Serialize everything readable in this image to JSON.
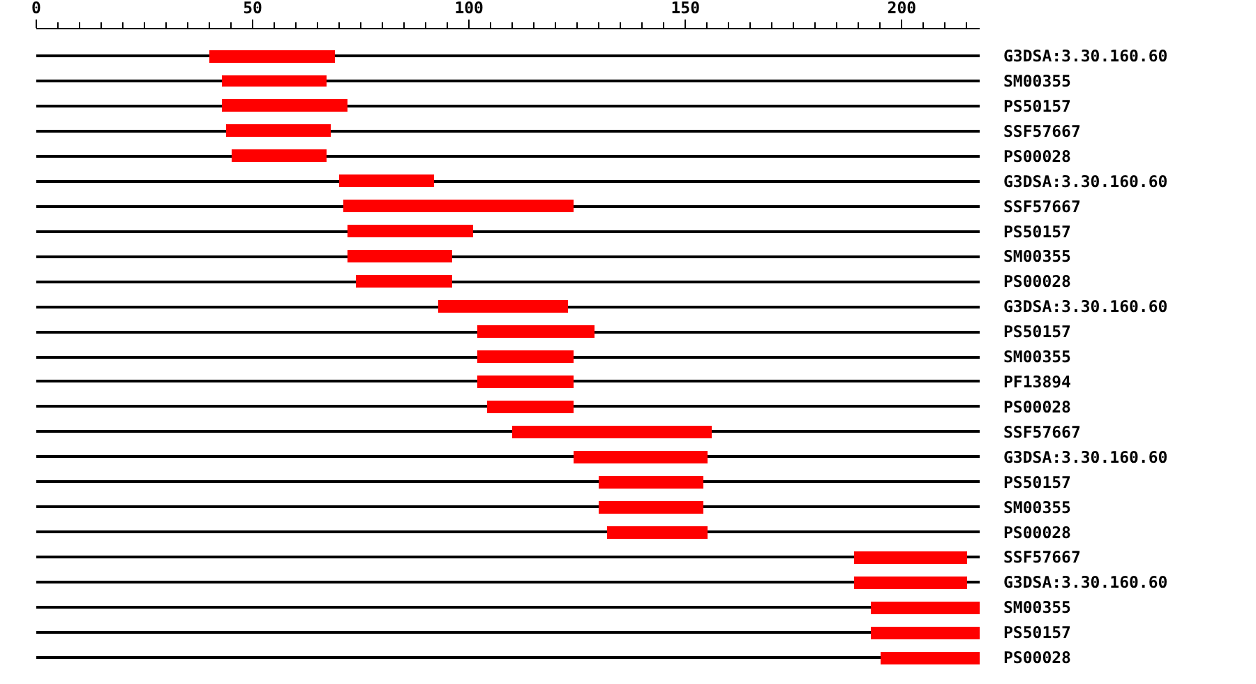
{
  "chart_data": {
    "type": "bar",
    "orientation": "horizontal",
    "categories": [
      "G3DSA:3.30.160.60",
      "SM00355",
      "PS50157",
      "SSF57667",
      "PS00028",
      "G3DSA:3.30.160.60",
      "SSF57667",
      "PS50157",
      "SM00355",
      "PS00028",
      "G3DSA:3.30.160.60",
      "PS50157",
      "SM00355",
      "PF13894",
      "PS00028",
      "SSF57667",
      "G3DSA:3.30.160.60",
      "PS50157",
      "SM00355",
      "PS00028",
      "SSF57667",
      "G3DSA:3.30.160.60",
      "SM00355",
      "PS50157",
      "PS00028"
    ],
    "series": [
      {
        "color": "#000000",
        "base": [
          0,
          0,
          0,
          0,
          0,
          0,
          0,
          0,
          0,
          0,
          0,
          0,
          0,
          0,
          0,
          0,
          0,
          0,
          0,
          0,
          0,
          0,
          0,
          0,
          0
        ],
        "values": [
          218,
          218,
          218,
          218,
          218,
          218,
          218,
          218,
          218,
          218,
          218,
          218,
          218,
          218,
          218,
          218,
          218,
          218,
          218,
          218,
          218,
          218,
          193,
          193,
          195
        ]
      },
      {
        "color": "#ff0000",
        "base": [
          40,
          43,
          43,
          44,
          45,
          70,
          71,
          72,
          72,
          74,
          93,
          102,
          102,
          102,
          104,
          110,
          124,
          130,
          130,
          132,
          189,
          189,
          193,
          193,
          195
        ],
        "values": [
          29,
          24,
          29,
          24,
          22,
          22,
          53,
          29,
          24,
          22,
          30,
          27,
          22,
          22,
          20,
          46,
          31,
          24,
          24,
          23,
          26,
          26,
          25,
          25,
          23
        ]
      }
    ],
    "xlim": [
      0,
      218
    ],
    "xticks": [
      0,
      {
        "value": 5,
        "label": null
      },
      {
        "value": 10,
        "label": null
      },
      {
        "value": 15,
        "label": null
      },
      {
        "value": 20,
        "label": null
      },
      {
        "value": 25,
        "label": null
      },
      {
        "value": 30,
        "label": null
      },
      {
        "value": 35,
        "label": null
      },
      {
        "value": 40,
        "label": null
      },
      {
        "value": 45,
        "label": null
      },
      50,
      {
        "value": 55,
        "label": null
      },
      {
        "value": 60,
        "label": null
      },
      {
        "value": 65,
        "label": null
      },
      {
        "value": 70,
        "label": null
      },
      {
        "value": 75,
        "label": null
      },
      {
        "value": 80,
        "label": null
      },
      {
        "value": 85,
        "label": null
      },
      {
        "value": 90,
        "label": null
      },
      {
        "value": 95,
        "label": null
      },
      100,
      {
        "value": 105,
        "label": null
      },
      {
        "value": 110,
        "label": null
      },
      {
        "value": 115,
        "label": null
      },
      {
        "value": 120,
        "label": null
      },
      {
        "value": 125,
        "label": null
      },
      {
        "value": 130,
        "label": null
      },
      {
        "value": 135,
        "label": null
      },
      {
        "value": 140,
        "label": null
      },
      {
        "value": 145,
        "label": null
      },
      150,
      {
        "value": 155,
        "label": null
      },
      {
        "value": 160,
        "label": null
      },
      {
        "value": 165,
        "label": null
      },
      {
        "value": 170,
        "label": null
      },
      {
        "value": 175,
        "label": null
      },
      {
        "value": 180,
        "label": null
      },
      {
        "value": 185,
        "label": null
      },
      {
        "value": 190,
        "label": null
      },
      {
        "value": 195,
        "label": null
      },
      200,
      {
        "value": 205,
        "label": null
      },
      {
        "value": 210,
        "label": null
      },
      {
        "value": 215,
        "label": null
      }
    ],
    "grid": false
  }
}
